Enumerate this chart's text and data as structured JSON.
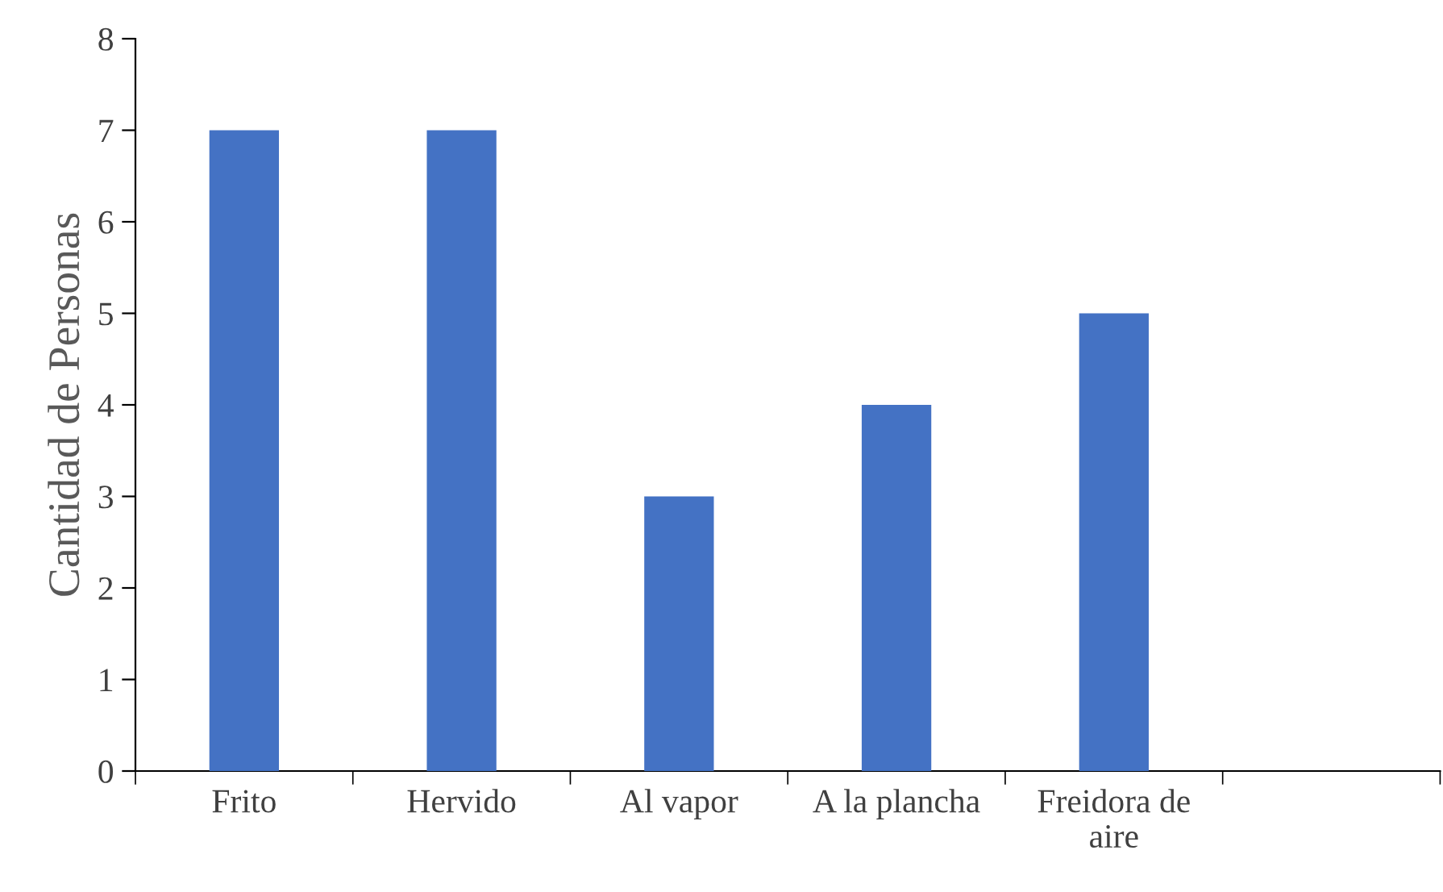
{
  "chart_data": {
    "type": "bar",
    "ylabel": "Cantidad de Personas",
    "categories": [
      "Frito",
      "Hervido",
      "Al vapor",
      "A la plancha",
      "Freidora de\naire",
      null
    ],
    "values": [
      7,
      7,
      3,
      4,
      5,
      null
    ],
    "color": "#4472c4",
    "ylim": [
      0,
      8
    ],
    "yticks": [
      0,
      1,
      2,
      3,
      4,
      5,
      6,
      7,
      8
    ],
    "grid": false,
    "legend": false
  }
}
